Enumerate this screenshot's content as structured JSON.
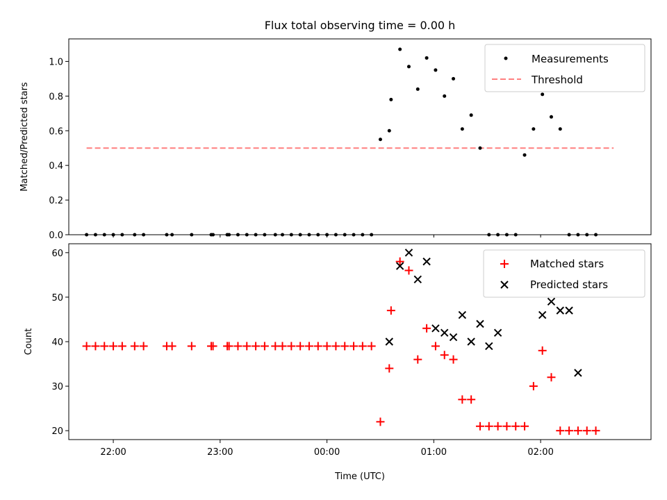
{
  "title": "Flux total observing time = 0.00 h",
  "colors": {
    "measurements": "#000000",
    "threshold": "#ff7f7f",
    "matched": "#ff0000",
    "predicted": "#000000",
    "axes": "#000000",
    "legend_border": "#cccccc"
  },
  "chart_data": [
    {
      "type": "scatter",
      "panel": "top",
      "title": "Flux total observing time = 0.00 h",
      "xlabel": "",
      "ylabel": "Matched/Predicted stars",
      "xlim": [
        "21:35",
        "03:02"
      ],
      "ylim": [
        0,
        1.13
      ],
      "yticks": [
        "0.0",
        "0.2",
        "0.4",
        "0.6",
        "0.8",
        "1.0"
      ],
      "legend_position": "top-right",
      "grid": false,
      "series": [
        {
          "name": "Measurements",
          "kind": "points",
          "x": [
            "21:45",
            "21:50",
            "21:55",
            "22:00",
            "22:05",
            "22:12",
            "22:17",
            "22:30",
            "22:33",
            "22:44",
            "22:55",
            "22:56",
            "23:04",
            "23:05",
            "23:10",
            "23:15",
            "23:20",
            "23:25",
            "23:31",
            "23:35",
            "23:40",
            "23:45",
            "23:50",
            "23:55",
            "00:00",
            "00:05",
            "00:10",
            "00:15",
            "00:20",
            "00:25",
            "00:30",
            "00:35",
            "00:36",
            "00:41",
            "00:46",
            "00:51",
            "00:56",
            "01:01",
            "01:06",
            "01:11",
            "01:16",
            "01:21",
            "01:26",
            "01:31",
            "01:36",
            "01:41",
            "01:46",
            "01:51",
            "01:56",
            "02:01",
            "02:06",
            "02:11",
            "02:16",
            "02:21",
            "02:26",
            "02:31",
            "02:36",
            "02:41"
          ],
          "y": [
            0,
            0,
            0,
            0,
            0,
            0,
            0,
            0,
            0,
            0,
            0,
            0,
            0,
            0,
            0,
            0,
            0,
            0,
            0,
            0,
            0,
            0,
            0,
            0,
            0,
            0,
            0,
            0,
            0,
            0,
            0.55,
            0.6,
            0.78,
            1.07,
            0.97,
            0.84,
            1.02,
            0.95,
            0.8,
            0.9,
            0.61,
            0.69,
            0.5,
            0,
            0,
            0,
            0,
            0.46,
            0.61,
            0.81,
            0.68,
            0.61,
            0,
            0,
            0,
            0,
            null,
            null
          ]
        },
        {
          "name": "Threshold",
          "kind": "dashed-line",
          "x": [
            "21:45",
            "02:41"
          ],
          "y": [
            0.5,
            0.5
          ]
        }
      ]
    },
    {
      "type": "scatter",
      "panel": "bottom",
      "xlabel": "Time (UTC)",
      "ylabel": "Count",
      "xlim": [
        "21:35",
        "03:02"
      ],
      "ylim": [
        18,
        62
      ],
      "yticks": [
        "20",
        "30",
        "40",
        "50",
        "60"
      ],
      "xticks": [
        "22:00",
        "23:00",
        "00:00",
        "01:00",
        "02:00"
      ],
      "legend_position": "top-right",
      "grid": false,
      "series": [
        {
          "name": "Matched stars",
          "marker": "+",
          "x": [
            "21:45",
            "21:50",
            "21:55",
            "22:00",
            "22:05",
            "22:12",
            "22:17",
            "22:30",
            "22:33",
            "22:44",
            "22:55",
            "22:56",
            "23:04",
            "23:05",
            "23:10",
            "23:15",
            "23:20",
            "23:25",
            "23:31",
            "23:35",
            "23:40",
            "23:45",
            "23:50",
            "23:55",
            "00:00",
            "00:05",
            "00:10",
            "00:15",
            "00:20",
            "00:25",
            "00:30",
            "00:35",
            "00:36",
            "00:41",
            "00:46",
            "00:51",
            "00:56",
            "01:01",
            "01:06",
            "01:11",
            "01:16",
            "01:21",
            "01:26",
            "01:31",
            "01:36",
            "01:41",
            "01:46",
            "01:51",
            "01:56",
            "02:01",
            "02:06",
            "02:11",
            "02:16",
            "02:21",
            "02:26",
            "02:31",
            "02:36",
            "02:41"
          ],
          "y": [
            39,
            39,
            39,
            39,
            39,
            39,
            39,
            39,
            39,
            39,
            39,
            39,
            39,
            39,
            39,
            39,
            39,
            39,
            39,
            39,
            39,
            39,
            39,
            39,
            39,
            39,
            39,
            39,
            39,
            39,
            22,
            34,
            47,
            58,
            56,
            36,
            43,
            39,
            37,
            36,
            27,
            27,
            21,
            21,
            21,
            21,
            21,
            21,
            30,
            38,
            32,
            20,
            20,
            20,
            20,
            20,
            null,
            null
          ]
        },
        {
          "name": "Predicted stars",
          "marker": "x",
          "x": [
            "00:35",
            "00:41",
            "00:46",
            "00:51",
            "00:56",
            "01:01",
            "01:06",
            "01:11",
            "01:16",
            "01:21",
            "01:26",
            "01:31",
            "01:36",
            "02:01",
            "02:06",
            "02:11",
            "02:16",
            "02:21"
          ],
          "y": [
            40,
            57,
            60,
            54,
            58,
            43,
            42,
            41,
            46,
            40,
            44,
            39,
            42,
            46,
            49,
            47,
            47,
            33
          ]
        }
      ]
    }
  ]
}
